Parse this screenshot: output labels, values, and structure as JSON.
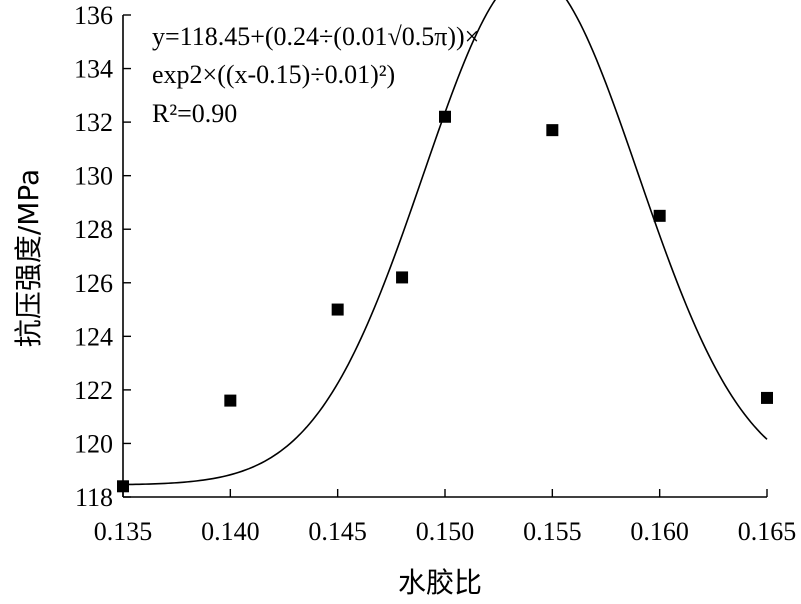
{
  "chart_data": {
    "type": "scatter",
    "xlabel": "水胶比",
    "ylabel": "抗压强度/MPa",
    "xlim": [
      0.135,
      0.165
    ],
    "ylim": [
      118,
      136
    ],
    "x_ticks": [
      "0.135",
      "0.140",
      "0.145",
      "0.150",
      "0.155",
      "0.160",
      "0.165"
    ],
    "y_ticks": [
      "118",
      "120",
      "122",
      "124",
      "126",
      "128",
      "130",
      "132",
      "134",
      "136"
    ],
    "points": [
      {
        "x": 0.135,
        "y": 118.4
      },
      {
        "x": 0.14,
        "y": 121.6
      },
      {
        "x": 0.145,
        "y": 125.0
      },
      {
        "x": 0.148,
        "y": 126.2
      },
      {
        "x": 0.15,
        "y": 132.2
      },
      {
        "x": 0.155,
        "y": 131.7
      },
      {
        "x": 0.16,
        "y": 128.5
      },
      {
        "x": 0.165,
        "y": 121.7
      }
    ],
    "fit": {
      "type": "gaussian",
      "y0": 118.45,
      "A": 0.24,
      "xc": 0.154,
      "w": 0.01,
      "equation_line1": "y=118.45+(0.24÷(0.01√0.5π))×",
      "equation_line2": "exp2×((x-0.15)÷0.01)²)",
      "r2_label": "R²=0.90"
    },
    "grid": false,
    "legend": "none"
  }
}
